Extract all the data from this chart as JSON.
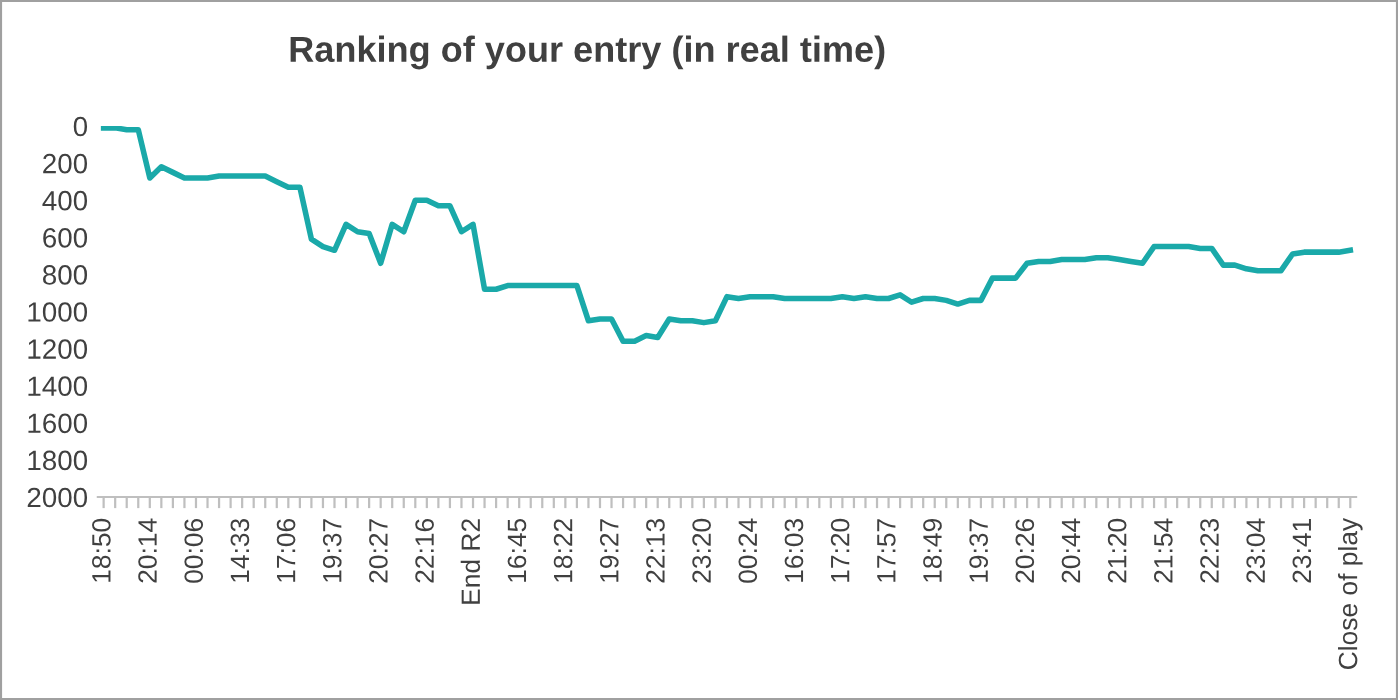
{
  "chart_data": {
    "type": "line",
    "title": "Ranking of your entry (in real time)",
    "categories": [
      "18:50",
      null,
      null,
      null,
      "20:14",
      null,
      null,
      null,
      "00:06",
      null,
      null,
      null,
      "14:33",
      null,
      null,
      null,
      "17:06",
      null,
      null,
      null,
      "19:37",
      null,
      null,
      null,
      "20:27",
      null,
      null,
      null,
      "22:16",
      null,
      null,
      null,
      "End R2",
      null,
      null,
      null,
      "16:45",
      null,
      null,
      null,
      "18:22",
      null,
      null,
      null,
      "19:27",
      null,
      null,
      null,
      "22:13",
      null,
      null,
      null,
      "23:20",
      null,
      null,
      null,
      "00:24",
      null,
      null,
      null,
      "16:03",
      null,
      null,
      null,
      "17:20",
      null,
      null,
      null,
      "17:57",
      null,
      null,
      null,
      "18:49",
      null,
      null,
      null,
      "19:37",
      null,
      null,
      null,
      "20:26",
      null,
      null,
      null,
      "20:44",
      null,
      null,
      null,
      "21:20",
      null,
      null,
      null,
      "21:54",
      null,
      null,
      null,
      "22:23",
      null,
      null,
      null,
      "23:04",
      null,
      null,
      null,
      "23:41",
      null,
      null,
      null,
      "Close of play"
    ],
    "series": [
      {
        "color": "#1aa9a9",
        "values": [
          10,
          10,
          20,
          20,
          280,
          220,
          250,
          280,
          280,
          280,
          270,
          270,
          270,
          270,
          270,
          300,
          330,
          330,
          610,
          650,
          670,
          530,
          570,
          580,
          740,
          530,
          570,
          400,
          400,
          430,
          430,
          570,
          530,
          880,
          880,
          860,
          860,
          860,
          860,
          860,
          860,
          860,
          1050,
          1040,
          1040,
          1160,
          1160,
          1130,
          1140,
          1040,
          1050,
          1050,
          1060,
          1050,
          920,
          930,
          920,
          920,
          920,
          930,
          930,
          930,
          930,
          930,
          920,
          930,
          920,
          930,
          930,
          910,
          950,
          930,
          930,
          940,
          960,
          940,
          940,
          820,
          820,
          820,
          740,
          730,
          730,
          720,
          720,
          720,
          710,
          710,
          720,
          730,
          740,
          650,
          650,
          650,
          650,
          660,
          660,
          750,
          750,
          770,
          780,
          780,
          780,
          690,
          680,
          680,
          680,
          680,
          670
        ]
      }
    ],
    "ylim": [
      2000,
      0
    ],
    "yticks": [
      0,
      200,
      400,
      600,
      800,
      1000,
      1200,
      1400,
      1600,
      1800,
      2000
    ],
    "grid": false,
    "legend": false,
    "marker": "none",
    "line_style": "solid"
  }
}
